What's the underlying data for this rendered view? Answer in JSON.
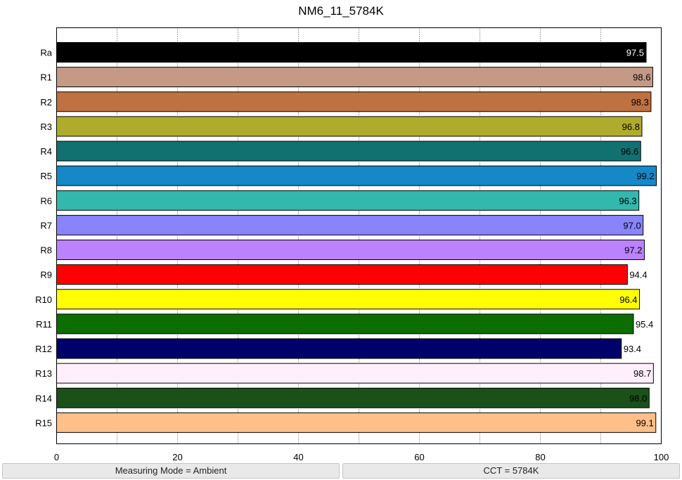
{
  "chart_data": {
    "type": "bar",
    "orientation": "horizontal",
    "title": "NM6_11_5784K",
    "xlabel": "",
    "ylabel": "",
    "xlim": [
      0,
      100
    ],
    "x_ticks": [
      "0",
      "20",
      "40",
      "60",
      "80",
      "100"
    ],
    "grid": "vertical dotted",
    "categories": [
      "Ra",
      "R1",
      "R2",
      "R3",
      "R4",
      "R5",
      "R6",
      "R7",
      "R8",
      "R9",
      "R10",
      "R11",
      "R12",
      "R13",
      "R14",
      "R15"
    ],
    "values": [
      97.5,
      98.6,
      98.3,
      96.8,
      96.6,
      99.2,
      96.3,
      97.0,
      97.2,
      94.4,
      96.4,
      95.4,
      93.4,
      98.7,
      98.0,
      99.1
    ],
    "value_labels": [
      "97.5",
      "98.6",
      "98.3",
      "96.8",
      "96.6",
      "99.2",
      "96.3",
      "97.0",
      "97.2",
      "94.4",
      "96.4",
      "95.4",
      "93.4",
      "98.7",
      "98.0",
      "99.1"
    ],
    "colors": [
      "#000000",
      "#c49a86",
      "#be7141",
      "#b1ab2c",
      "#117170",
      "#1588c8",
      "#33b8ad",
      "#8884fd",
      "#bb82fe",
      "#ff0000",
      "#ffff00",
      "#0e6d00",
      "#00006b",
      "#ffeffd",
      "#1b501b",
      "#febf88"
    ],
    "label_colors": [
      "#ffffff",
      "#000000",
      "#000000",
      "#000000",
      "#000000",
      "#000000",
      "#000000",
      "#000000",
      "#000000",
      "#000000",
      "#000000",
      "#000000",
      "#000000",
      "#000000",
      "#000000",
      "#000000"
    ]
  },
  "status": {
    "left": "Measuring Mode = Ambient",
    "right": "CCT = 5784K"
  }
}
